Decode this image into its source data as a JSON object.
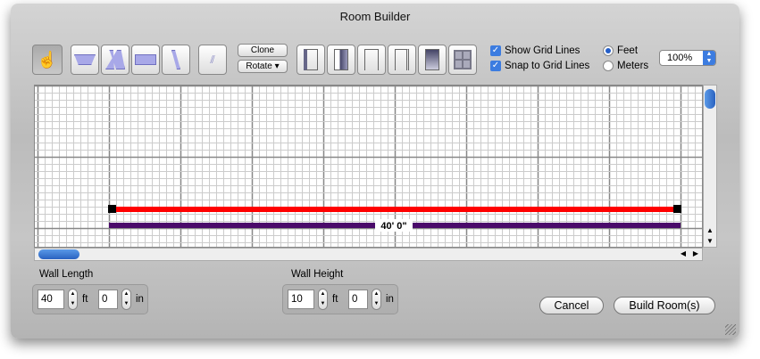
{
  "window": {
    "title": "Room Builder"
  },
  "toolbar": {
    "tools": [
      "hand-pointer-icon",
      "box-room-icon",
      "angled-walls-icon",
      "rectangle-room-icon",
      "single-wall-icon",
      "wall-tool-icon"
    ],
    "clone_label": "Clone",
    "rotate_label": "Rotate ▾",
    "openings": [
      "door-left-icon",
      "door-right-icon",
      "opening-icon",
      "doorway-icon",
      "sliding-door-icon",
      "window-icon"
    ]
  },
  "options": {
    "show_grid_lines": {
      "label": "Show Grid Lines",
      "checked": true
    },
    "snap_to_grid": {
      "label": "Snap to Grid Lines",
      "checked": true
    },
    "units": [
      {
        "label": "Feet",
        "selected": true
      },
      {
        "label": "Meters",
        "selected": false
      }
    ],
    "zoom": "100%"
  },
  "canvas": {
    "dimension_label": "40' 0\"",
    "wall_color": "#ff0000",
    "dimension_color": "#4a0a6a"
  },
  "wall_length": {
    "label": "Wall Length",
    "feet": "40",
    "inches": "0",
    "ft_unit": "ft",
    "in_unit": "in"
  },
  "wall_height": {
    "label": "Wall Height",
    "feet": "10",
    "inches": "0",
    "ft_unit": "ft",
    "in_unit": "in"
  },
  "buttons": {
    "cancel": "Cancel",
    "build": "Build Room(s)"
  }
}
